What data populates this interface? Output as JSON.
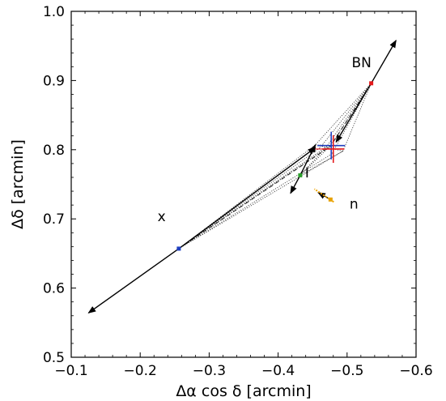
{
  "chart_data": {
    "type": "scatter",
    "xlabel": "Δα cos δ [arcmin]",
    "ylabel": "Δδ [arcmin]",
    "xlim": [
      -0.1,
      -0.6
    ],
    "ylim": [
      0.5,
      1.0
    ],
    "xticks": [
      -0.1,
      -0.2,
      -0.3,
      -0.4,
      -0.5,
      -0.6
    ],
    "xtick_labels": [
      "−0.1",
      "−0.2",
      "−0.3",
      "−0.4",
      "−0.5",
      "−0.6"
    ],
    "yticks": [
      0.5,
      0.6,
      0.7,
      0.8,
      0.9,
      1.0
    ],
    "ytick_labels": [
      "0.5",
      "0.6",
      "0.7",
      "0.8",
      "0.9",
      "1.0"
    ],
    "grid": false,
    "points": [
      {
        "label": "BN",
        "x": -0.535,
        "y": 0.896,
        "color": "#e41a1c"
      },
      {
        "label": "x",
        "x": -0.256,
        "y": 0.657,
        "color": "#1f3fbf"
      },
      {
        "label": "I",
        "x": -0.432,
        "y": 0.763,
        "color": "#2ca02c"
      },
      {
        "label": "n",
        "x": -0.476,
        "y": 0.728,
        "color": "#e6a100"
      }
    ],
    "labels": [
      {
        "text": "BN",
        "x": -0.521,
        "y": 0.919
      },
      {
        "text": "x",
        "x": -0.231,
        "y": 0.697
      },
      {
        "text": "I",
        "x": -0.442,
        "y": 0.76
      },
      {
        "text": "n",
        "x": -0.51,
        "y": 0.715
      }
    ],
    "vectors": [
      {
        "from": [
          -0.535,
          0.896
        ],
        "to": [
          -0.571,
          0.958
        ],
        "color": "#000000"
      },
      {
        "from": [
          -0.535,
          0.896
        ],
        "to": [
          -0.484,
          0.811
        ],
        "color": "#000000"
      },
      {
        "from": [
          -0.256,
          0.657
        ],
        "to": [
          -0.125,
          0.564
        ],
        "color": "#000000"
      },
      {
        "from": [
          -0.256,
          0.657
        ],
        "to": [
          -0.454,
          0.803
        ],
        "color": "#000000"
      },
      {
        "from": [
          -0.432,
          0.763
        ],
        "to": [
          -0.418,
          0.737
        ],
        "color": "#000000"
      },
      {
        "from": [
          -0.432,
          0.763
        ],
        "to": [
          -0.454,
          0.807
        ],
        "color": "#000000"
      },
      {
        "from": [
          -0.476,
          0.728
        ],
        "to": [
          -0.458,
          0.738
        ],
        "color": "#000000"
      }
    ],
    "crosses": [
      {
        "x": -0.477,
        "y": 0.806,
        "dx": 0.02,
        "dy": 0.02,
        "color": "#1f3fbf"
      },
      {
        "x": -0.48,
        "y": 0.801,
        "dx": 0.016,
        "dy": 0.02,
        "color": "#e41a1c"
      }
    ],
    "error_bars": [
      {
        "x": -0.471,
        "y": 0.801,
        "dx": 0.025,
        "dy": 0.0,
        "color": "#e41a1c"
      }
    ],
    "bar_colors": [
      "#e41a1c",
      "#1f3fbf",
      "#2ca02c",
      "#e6a100"
    ],
    "dotted_lines": [
      [
        [
          -0.535,
          0.896
        ],
        [
          -0.454,
          0.807
        ]
      ],
      [
        [
          -0.535,
          0.896
        ],
        [
          -0.461,
          0.803
        ]
      ],
      [
        [
          -0.535,
          0.896
        ],
        [
          -0.47,
          0.804
        ]
      ],
      [
        [
          -0.535,
          0.896
        ],
        [
          -0.478,
          0.794
        ]
      ],
      [
        [
          -0.535,
          0.896
        ],
        [
          -0.476,
          0.806
        ]
      ],
      [
        [
          -0.535,
          0.896
        ],
        [
          -0.494,
          0.798
        ]
      ],
      [
        [
          -0.256,
          0.657
        ],
        [
          -0.454,
          0.807
        ]
      ],
      [
        [
          -0.256,
          0.657
        ],
        [
          -0.461,
          0.803
        ]
      ],
      [
        [
          -0.256,
          0.657
        ],
        [
          -0.47,
          0.804
        ]
      ],
      [
        [
          -0.256,
          0.657
        ],
        [
          -0.478,
          0.794
        ]
      ],
      [
        [
          -0.256,
          0.657
        ],
        [
          -0.494,
          0.798
        ]
      ],
      [
        [
          -0.256,
          0.657
        ],
        [
          -0.476,
          0.806
        ]
      ],
      [
        [
          -0.432,
          0.763
        ],
        [
          -0.476,
          0.806
        ]
      ],
      [
        [
          -0.432,
          0.763
        ],
        [
          -0.47,
          0.804
        ]
      ],
      [
        [
          -0.432,
          0.763
        ],
        [
          -0.494,
          0.798
        ]
      ],
      [
        [
          -0.432,
          0.763
        ],
        [
          -0.454,
          0.807
        ]
      ],
      [
        [
          -0.454,
          0.807
        ],
        [
          -0.494,
          0.798
        ]
      ],
      [
        [
          -0.454,
          0.807
        ],
        [
          -0.476,
          0.806
        ]
      ]
    ],
    "dashed_lines": [
      [
        [
          -0.535,
          0.896
        ],
        [
          -0.476,
          0.805
        ]
      ],
      [
        [
          -0.256,
          0.657
        ],
        [
          -0.476,
          0.805
        ]
      ]
    ]
  }
}
